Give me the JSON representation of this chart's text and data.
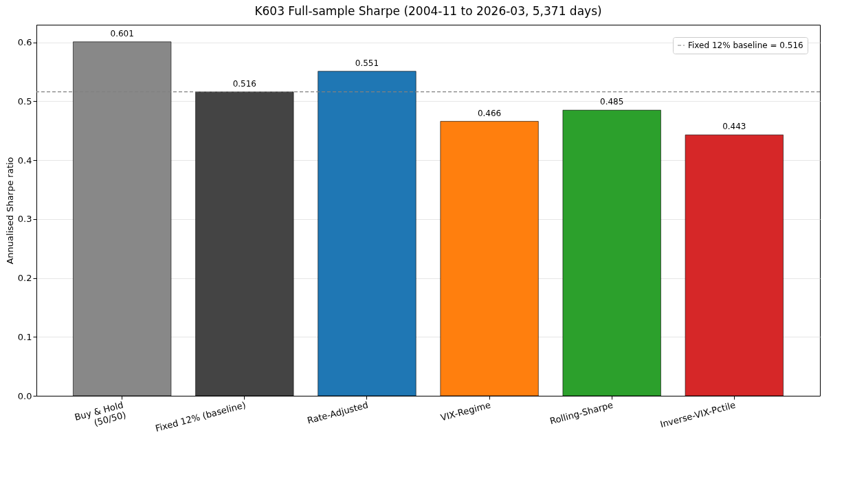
{
  "chart_data": {
    "type": "bar",
    "title": "K603 Full-sample Sharpe (2004-11 to 2026-03, 5,371 days)",
    "ylabel": "Annualised Sharpe ratio",
    "categories": [
      "Buy & Hold\n(50/50)",
      "Fixed 12% (baseline)",
      "Rate-Adjusted",
      "VIX-Regime",
      "Rolling-Sharpe",
      "Inverse-VIX-Pctile"
    ],
    "values": [
      0.601,
      0.516,
      0.551,
      0.466,
      0.485,
      0.443
    ],
    "colors": [
      "#888888",
      "#444444",
      "#1f77b4",
      "#ff7f0e",
      "#2ca02c",
      "#d62728"
    ],
    "ylim": [
      0,
      0.63
    ],
    "yticks": [
      {
        "value": 0,
        "label": "0.0"
      },
      {
        "value": 0.1,
        "label": "0.1"
      },
      {
        "value": 0.2,
        "label": "0.2"
      },
      {
        "value": 0.3,
        "label": "0.3"
      },
      {
        "value": 0.4,
        "label": "0.4"
      },
      {
        "value": 0.5,
        "label": "0.5"
      },
      {
        "value": 0.6,
        "label": "0.6"
      }
    ],
    "grid": "y",
    "legend": "top right",
    "data_labels": true,
    "ref_lines": [
      {
        "axis": "y",
        "value": 0.516,
        "label": "Fixed 12% baseline = 0.516",
        "color": "#808080",
        "line_style": "dashed"
      }
    ]
  }
}
